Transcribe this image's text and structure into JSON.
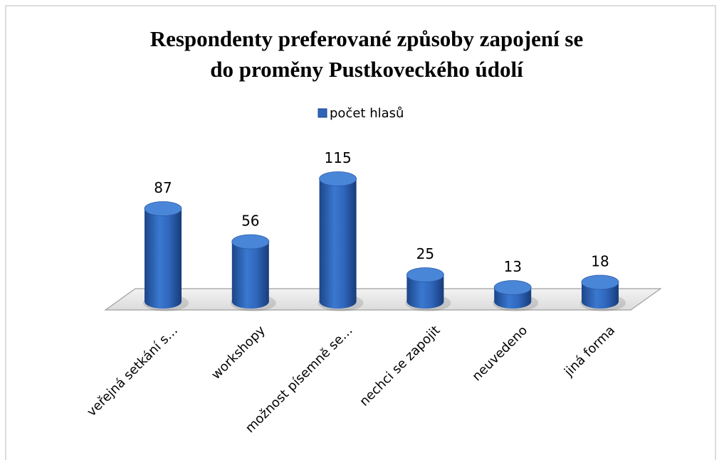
{
  "chart_data": {
    "type": "bar",
    "title": [
      "Respondenty preferované způsoby zapojení se",
      "do proměny Pustkoveckého údolí"
    ],
    "categories": [
      "veřejná setkání s…",
      "workshopy",
      "možnost písemně se…",
      "nechci se zapojit",
      "neuvedeno",
      "jiná forma"
    ],
    "series": [
      {
        "name": "počet hlasů",
        "color": "#2f65b8",
        "values": [
          87,
          56,
          115,
          25,
          13,
          18
        ]
      }
    ],
    "legend": "top"
  }
}
